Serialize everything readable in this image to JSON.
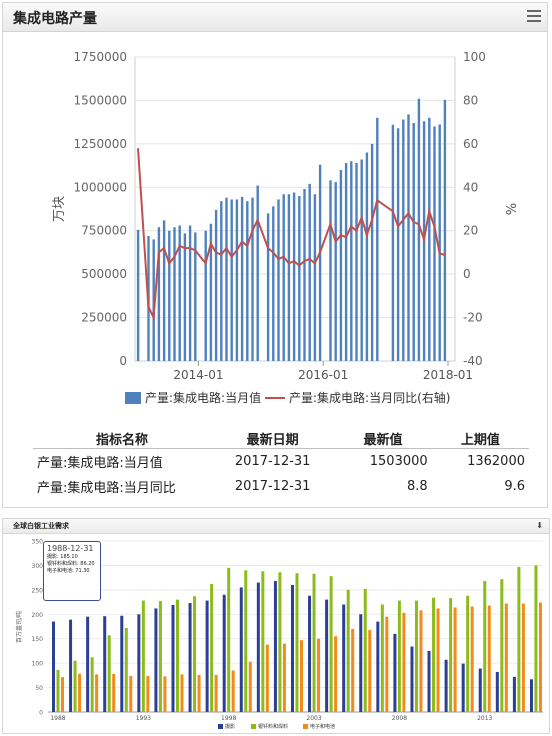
{
  "panel1": {
    "title": "集成电路产量",
    "table": {
      "headers": [
        "指标名称",
        "最新日期",
        "最新值",
        "上期值"
      ],
      "rows": [
        [
          "产量:集成电路:当月值",
          "2017-12-31",
          "1503000",
          "1362000"
        ],
        [
          "产量:集成电路:当月同比",
          "2017-12-31",
          "8.8",
          "9.6"
        ]
      ]
    }
  },
  "panel2": {
    "title": "全球白银工业需求",
    "tooltip": {
      "date": "1988-12-31",
      "lines": [
        "摄影: 185.10",
        "银钎料和焊料: 86.20",
        "电子和电池: 71.30"
      ]
    }
  },
  "chart_data": [
    {
      "type": "bar",
      "ylabel": "万块",
      "y2label": "%",
      "ylim": [
        0,
        1750000
      ],
      "y2lim": [
        -40,
        100
      ],
      "yticks": [
        "0",
        "250000",
        "500000",
        "750000",
        "1000000",
        "1250000",
        "1500000",
        "1750000"
      ],
      "y2ticks": [
        "-40",
        "-20",
        "0",
        "20",
        "40",
        "60",
        "80",
        "100"
      ],
      "xticks": [
        "2014-01",
        "2016-01",
        "2018-01"
      ],
      "legend_position": "bottom",
      "colors": {
        "bars": "#4f81bd",
        "line": "#c0504d"
      },
      "months": [
        "2013-01",
        "2013-02",
        "2013-03",
        "2013-04",
        "2013-05",
        "2013-06",
        "2013-07",
        "2013-08",
        "2013-09",
        "2013-10",
        "2013-11",
        "2013-12",
        "2014-01",
        "2014-02",
        "2014-03",
        "2014-04",
        "2014-05",
        "2014-06",
        "2014-07",
        "2014-08",
        "2014-09",
        "2014-10",
        "2014-11",
        "2014-12",
        "2015-01",
        "2015-02",
        "2015-03",
        "2015-04",
        "2015-05",
        "2015-06",
        "2015-07",
        "2015-08",
        "2015-09",
        "2015-10",
        "2015-11",
        "2015-12",
        "2016-01",
        "2016-02",
        "2016-03",
        "2016-04",
        "2016-05",
        "2016-06",
        "2016-07",
        "2016-08",
        "2016-09",
        "2016-10",
        "2016-11",
        "2016-12",
        "2017-01",
        "2017-02",
        "2017-03",
        "2017-04",
        "2017-05",
        "2017-06",
        "2017-07",
        "2017-08",
        "2017-09",
        "2017-10",
        "2017-11",
        "2017-12"
      ],
      "series": [
        {
          "name": "产量:集成电路:当月值",
          "kind": "bar",
          "axis": "left",
          "values": [
            755000,
            null,
            720000,
            700000,
            770000,
            810000,
            750000,
            770000,
            780000,
            735000,
            780000,
            740000,
            null,
            750000,
            790000,
            870000,
            920000,
            940000,
            930000,
            930000,
            945000,
            920000,
            940000,
            1010000,
            null,
            850000,
            890000,
            930000,
            960000,
            960000,
            970000,
            950000,
            990000,
            1020000,
            960000,
            1130000,
            null,
            1040000,
            1030000,
            1100000,
            1140000,
            1150000,
            1140000,
            1160000,
            1200000,
            1250000,
            1400000,
            null,
            null,
            1360000,
            1340000,
            1390000,
            1420000,
            1370000,
            1510000,
            1380000,
            1400000,
            1350000,
            1362000,
            1503000
          ]
        },
        {
          "name": "产量:集成电路:当月同比(右轴)",
          "kind": "line",
          "axis": "right",
          "values": [
            58,
            null,
            -15,
            -20,
            10,
            12,
            5,
            8,
            13,
            12,
            12,
            11,
            null,
            5,
            14,
            10,
            9,
            12,
            8,
            11,
            15,
            13,
            20,
            25,
            null,
            12,
            10,
            7,
            8,
            5,
            6,
            4,
            6,
            7,
            5,
            10,
            null,
            23,
            15,
            18,
            17,
            22,
            20,
            26,
            18,
            25,
            34,
            null,
            null,
            29,
            22,
            25,
            28,
            24,
            23,
            16,
            29,
            22,
            9.6,
            8.8
          ]
        }
      ]
    },
    {
      "type": "bar",
      "ylabel": "百万盎司/吨",
      "ylim": [
        0,
        350
      ],
      "yticks": [
        "0",
        "50",
        "100",
        "150",
        "200",
        "250",
        "300",
        "350"
      ],
      "xticks": [
        "1988",
        "1993",
        "1998",
        "2003",
        "2008",
        "2013"
      ],
      "legend_position": "bottom",
      "categories": [
        "1988",
        "1989",
        "1990",
        "1991",
        "1992",
        "1993",
        "1994",
        "1995",
        "1996",
        "1997",
        "1998",
        "1999",
        "2000",
        "2001",
        "2002",
        "2003",
        "2004",
        "2005",
        "2006",
        "2007",
        "2008",
        "2009",
        "2010",
        "2011",
        "2012",
        "2013",
        "2014",
        "2015",
        "2016"
      ],
      "colors": {
        "摄影": "#2c3f94",
        "银钎料和焊料": "#8cbc1b",
        "电子和电池": "#f28a1d"
      },
      "series": [
        {
          "name": "摄影",
          "values": [
            185.1,
            189,
            195,
            196,
            197,
            200,
            212,
            219,
            223,
            228,
            240,
            255,
            265,
            268,
            260,
            238,
            230,
            220,
            200,
            185,
            160,
            134,
            125,
            107,
            99,
            89,
            82,
            72,
            67
          ]
        },
        {
          "name": "银钎料和焊料",
          "values": [
            86.2,
            105,
            112,
            157,
            172,
            228,
            227,
            230,
            237,
            262,
            295,
            290,
            288,
            286,
            284,
            283,
            278,
            250,
            252,
            220,
            228,
            228,
            234,
            233,
            238,
            268,
            272,
            297,
            300
          ]
        },
        {
          "name": "电子和电池",
          "values": [
            71.3,
            78,
            77,
            78,
            74,
            74,
            73,
            77,
            76,
            76,
            85,
            103,
            138,
            140,
            147,
            150,
            155,
            170,
            168,
            195,
            203,
            208,
            212,
            214,
            216,
            218,
            222,
            222,
            224
          ]
        }
      ]
    }
  ]
}
